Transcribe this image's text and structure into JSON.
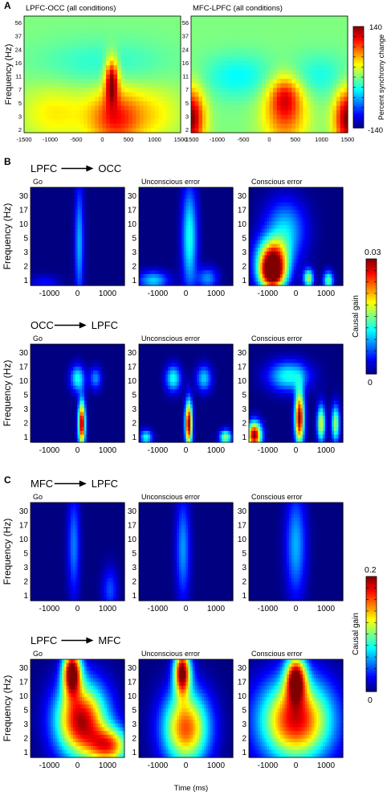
{
  "chart_data": [
    {
      "type": "heatmap",
      "panel": "A",
      "colormap": "jet",
      "colorbar": {
        "label": "Percent synchrony change",
        "min": -140,
        "max": 140,
        "ticks": [
          "140",
          "-140"
        ]
      },
      "ylabel": "Frequency (Hz)",
      "yticks": [
        "56",
        "37",
        "24",
        "16",
        "11",
        "7",
        "5",
        "3",
        "2"
      ],
      "xticks": [
        "-1500",
        "-1000",
        "-500",
        "0",
        "500",
        "1000",
        "1500"
      ],
      "xlim": [
        -1500,
        1500
      ],
      "plots": [
        {
          "title": "LPFC-OCC (all conditions)",
          "blobs": [
            {
              "t": 180,
              "f": 9,
              "v": 140,
              "wt": 90,
              "wf": 0.45
            },
            {
              "t": 250,
              "f": 3,
              "v": 95,
              "wt": 350,
              "wf": 0.6
            },
            {
              "t": -900,
              "f": 3.5,
              "v": 40,
              "wt": 500,
              "wf": 0.6
            },
            {
              "t": 1000,
              "f": 3.5,
              "v": 35,
              "wt": 400,
              "wf": 0.6
            },
            {
              "t": 0,
              "f": 14,
              "v": -25,
              "wt": 900,
              "wf": 0.5
            }
          ]
        },
        {
          "title": "MFC-LPFC (all conditions)",
          "blobs": [
            {
              "t": -1500,
              "f": 3,
              "v": 140,
              "wt": 180,
              "wf": 0.6
            },
            {
              "t": 1500,
              "f": 3,
              "v": 140,
              "wt": 180,
              "wf": 0.6
            },
            {
              "t": 300,
              "f": 3.5,
              "v": 80,
              "wt": 300,
              "wf": 0.7
            },
            {
              "t": 300,
              "f": 6,
              "v": 60,
              "wt": 200,
              "wf": 0.4
            },
            {
              "t": -600,
              "f": 10,
              "v": -35,
              "wt": 500,
              "wf": 0.45
            },
            {
              "t": 900,
              "f": 10,
              "v": -30,
              "wt": 500,
              "wf": 0.45
            }
          ]
        }
      ]
    },
    {
      "type": "heatmap",
      "panel": "B",
      "colormap": "jet",
      "colorbar": {
        "label": "Causal gain",
        "min": 0,
        "max": 0.03,
        "ticks": [
          "0.03",
          "0"
        ]
      },
      "ylabel": "Frequency (Hz)",
      "yticks": [
        "30",
        "17",
        "10",
        "5",
        "3",
        "2",
        "1"
      ],
      "xticks": [
        "-1000",
        "0",
        "1000"
      ],
      "xlim": [
        -1300,
        1300
      ],
      "rows": [
        {
          "from": "LPFC",
          "to": "OCC",
          "plots": [
            {
              "title": "Go",
              "blobs": [
                {
                  "t": 50,
                  "f": 5,
                  "v": 0.009,
                  "wt": 90,
                  "wf": 1.6
                },
                {
                  "t": -900,
                  "f": 1.1,
                  "v": 0.004,
                  "wt": 300,
                  "wf": 0.2
                }
              ]
            },
            {
              "title": "Unconscious error",
              "blobs": [
                {
                  "t": 100,
                  "f": 6,
                  "v": 0.012,
                  "wt": 150,
                  "wf": 1.4
                },
                {
                  "t": -900,
                  "f": 1.2,
                  "v": 0.01,
                  "wt": 300,
                  "wf": 0.25
                },
                {
                  "t": 600,
                  "f": 1.3,
                  "v": 0.008,
                  "wt": 200,
                  "wf": 0.3
                }
              ]
            },
            {
              "title": "Conscious error",
              "blobs": [
                {
                  "t": -650,
                  "f": 1.5,
                  "v": 0.03,
                  "wt": 260,
                  "wf": 0.45
                },
                {
                  "t": -650,
                  "f": 3,
                  "v": 0.02,
                  "wt": 300,
                  "wf": 0.5
                },
                {
                  "t": -300,
                  "f": 8,
                  "v": 0.01,
                  "wt": 400,
                  "wf": 0.8
                },
                {
                  "t": 350,
                  "f": 1.3,
                  "v": 0.016,
                  "wt": 100,
                  "wf": 0.25
                },
                {
                  "t": 900,
                  "f": 1.2,
                  "v": 0.014,
                  "wt": 100,
                  "wf": 0.25
                }
              ]
            }
          ]
        },
        {
          "from": "OCC",
          "to": "LPFC",
          "plots": [
            {
              "title": "Go",
              "blobs": [
                {
                  "t": 120,
                  "f": 2,
                  "v": 0.03,
                  "wt": 70,
                  "wf": 0.6
                },
                {
                  "t": 0,
                  "f": 11,
                  "v": 0.012,
                  "wt": 140,
                  "wf": 0.35
                },
                {
                  "t": 500,
                  "f": 11,
                  "v": 0.008,
                  "wt": 120,
                  "wf": 0.3
                }
              ]
            },
            {
              "title": "Unconscious error",
              "blobs": [
                {
                  "t": 80,
                  "f": 2,
                  "v": 0.03,
                  "wt": 70,
                  "wf": 0.6
                },
                {
                  "t": -350,
                  "f": 11,
                  "v": 0.012,
                  "wt": 150,
                  "wf": 0.35
                },
                {
                  "t": 500,
                  "f": 11,
                  "v": 0.01,
                  "wt": 150,
                  "wf": 0.35
                },
                {
                  "t": 1100,
                  "f": 1.2,
                  "v": 0.016,
                  "wt": 120,
                  "wf": 0.2
                },
                {
                  "t": -1100,
                  "f": 1.2,
                  "v": 0.012,
                  "wt": 120,
                  "wf": 0.2
                }
              ]
            },
            {
              "title": "Conscious error",
              "blobs": [
                {
                  "t": 100,
                  "f": 2.5,
                  "v": 0.03,
                  "wt": 90,
                  "wf": 0.7
                },
                {
                  "t": -1150,
                  "f": 1.3,
                  "v": 0.03,
                  "wt": 140,
                  "wf": 0.35
                },
                {
                  "t": 700,
                  "f": 2,
                  "v": 0.018,
                  "wt": 80,
                  "wf": 0.5
                },
                {
                  "t": 1100,
                  "f": 2,
                  "v": 0.016,
                  "wt": 80,
                  "wf": 0.5
                },
                {
                  "t": -200,
                  "f": 12,
                  "v": 0.012,
                  "wt": 400,
                  "wf": 0.4
                }
              ]
            }
          ]
        }
      ]
    },
    {
      "type": "heatmap",
      "panel": "C",
      "colormap": "jet",
      "colorbar": {
        "label": "Causal gain",
        "min": 0,
        "max": 0.2,
        "ticks": [
          "0.2",
          "0"
        ]
      },
      "ylabel": "Frequency (Hz)",
      "yticks": [
        "30",
        "17",
        "10",
        "5",
        "3",
        "2",
        "1"
      ],
      "xticks": [
        "-1000",
        "0",
        "1000"
      ],
      "xlim": [
        -1300,
        1300
      ],
      "rows": [
        {
          "from": "MFC",
          "to": "LPFC",
          "plots": [
            {
              "title": "Go",
              "blobs": [
                {
                  "t": -100,
                  "f": 8,
                  "v": 0.05,
                  "wt": 120,
                  "wf": 1.4
                },
                {
                  "t": 900,
                  "f": 1.5,
                  "v": 0.04,
                  "wt": 150,
                  "wf": 0.6
                }
              ]
            },
            {
              "title": "Unconscious error",
              "blobs": [
                {
                  "t": -80,
                  "f": 7,
                  "v": 0.055,
                  "wt": 140,
                  "wf": 1.4
                }
              ]
            },
            {
              "title": "Conscious error",
              "blobs": [
                {
                  "t": 0,
                  "f": 8,
                  "v": 0.06,
                  "wt": 200,
                  "wf": 1.4
                }
              ]
            }
          ]
        },
        {
          "from": "LPFC",
          "to": "MFC",
          "plots": [
            {
              "title": "Go",
              "blobs": [
                {
                  "t": -150,
                  "f": 25,
                  "v": 0.2,
                  "wt": 180,
                  "wf": 0.6
                },
                {
                  "t": 100,
                  "f": 4,
                  "v": 0.19,
                  "wt": 500,
                  "wf": 1.0
                },
                {
                  "t": 900,
                  "f": 1.5,
                  "v": 0.14,
                  "wt": 400,
                  "wf": 0.5
                }
              ]
            },
            {
              "title": "Unconscious error",
              "blobs": [
                {
                  "t": -100,
                  "f": 25,
                  "v": 0.2,
                  "wt": 160,
                  "wf": 0.6
                },
                {
                  "t": 0,
                  "f": 3,
                  "v": 0.16,
                  "wt": 450,
                  "wf": 1.0
                }
              ]
            },
            {
              "title": "Conscious error",
              "blobs": [
                {
                  "t": 0,
                  "f": 20,
                  "v": 0.17,
                  "wt": 200,
                  "wf": 0.6
                },
                {
                  "t": 0,
                  "f": 4,
                  "v": 0.18,
                  "wt": 700,
                  "wf": 1.1
                }
              ]
            }
          ]
        }
      ]
    }
  ],
  "panel_labels": [
    "A",
    "B",
    "C"
  ],
  "xlabel": "Time (ms)"
}
